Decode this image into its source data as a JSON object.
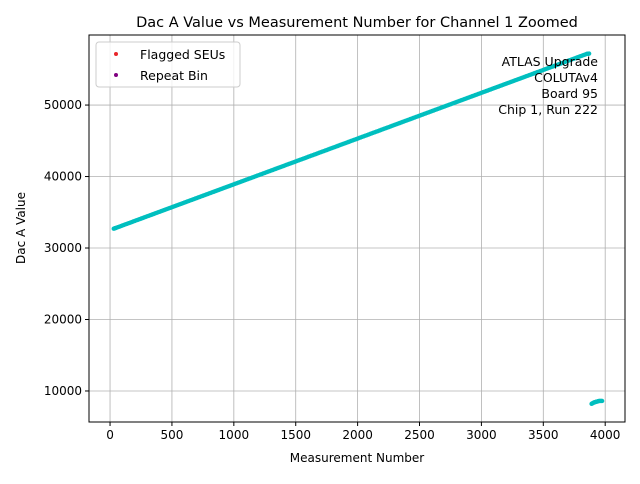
{
  "chart_data": {
    "type": "scatter",
    "title": "Dac A Value vs Measurement Number for Channel 1 Zoomed",
    "xlabel": "Measurement Number",
    "ylabel": "Dac A Value",
    "xlim": [
      -170,
      4160
    ],
    "ylim": [
      5660,
      59800
    ],
    "xticks": [
      0,
      500,
      1000,
      1500,
      2000,
      2500,
      3000,
      3500,
      4000
    ],
    "yticks": [
      10000,
      20000,
      30000,
      40000,
      50000
    ],
    "grid": true,
    "legend": {
      "placement": "top-left",
      "entries": [
        {
          "label": "Flagged SEUs",
          "color": "#e8262a"
        },
        {
          "label": "Repeat Bin",
          "color": "#800080"
        }
      ]
    },
    "annotation": [
      "ATLAS Upgrade",
      "COLUTAv4",
      "Board 95",
      "Chip 1, Run 222"
    ],
    "series": [
      {
        "color": "#00bfbf",
        "points": [
          [
            30,
            32700
          ],
          [
            50,
            32830
          ],
          [
            100,
            33150
          ],
          [
            150,
            33470
          ],
          [
            200,
            33790
          ],
          [
            250,
            34110
          ],
          [
            300,
            34430
          ],
          [
            350,
            34750
          ],
          [
            400,
            35070
          ],
          [
            450,
            35390
          ],
          [
            500,
            35710
          ],
          [
            550,
            36030
          ],
          [
            600,
            36350
          ],
          [
            650,
            36670
          ],
          [
            700,
            36990
          ],
          [
            750,
            37310
          ],
          [
            800,
            37630
          ],
          [
            850,
            37950
          ],
          [
            900,
            38270
          ],
          [
            950,
            38590
          ],
          [
            1000,
            38910
          ],
          [
            1050,
            39230
          ],
          [
            1100,
            39550
          ],
          [
            1150,
            39870
          ],
          [
            1200,
            40190
          ],
          [
            1250,
            40510
          ],
          [
            1300,
            40830
          ],
          [
            1350,
            41150
          ],
          [
            1400,
            41470
          ],
          [
            1450,
            41790
          ],
          [
            1500,
            42110
          ],
          [
            1550,
            42430
          ],
          [
            1600,
            42750
          ],
          [
            1650,
            43070
          ],
          [
            1700,
            43390
          ],
          [
            1750,
            43710
          ],
          [
            1800,
            44030
          ],
          [
            1850,
            44350
          ],
          [
            1900,
            44670
          ],
          [
            1950,
            44990
          ],
          [
            2000,
            45310
          ],
          [
            2050,
            45630
          ],
          [
            2100,
            45950
          ],
          [
            2150,
            46270
          ],
          [
            2200,
            46590
          ],
          [
            2250,
            46910
          ],
          [
            2300,
            47230
          ],
          [
            2350,
            47550
          ],
          [
            2400,
            47870
          ],
          [
            2450,
            48190
          ],
          [
            2500,
            48510
          ],
          [
            2550,
            48830
          ],
          [
            2600,
            49150
          ],
          [
            2650,
            49470
          ],
          [
            2700,
            49790
          ],
          [
            2750,
            50110
          ],
          [
            2800,
            50430
          ],
          [
            2850,
            50750
          ],
          [
            2900,
            51070
          ],
          [
            2950,
            51390
          ],
          [
            3000,
            51710
          ],
          [
            3050,
            52030
          ],
          [
            3100,
            52350
          ],
          [
            3150,
            52670
          ],
          [
            3200,
            52990
          ],
          [
            3250,
            53310
          ],
          [
            3300,
            53630
          ],
          [
            3350,
            53950
          ],
          [
            3400,
            54270
          ],
          [
            3450,
            54590
          ],
          [
            3500,
            54910
          ],
          [
            3550,
            55230
          ],
          [
            3600,
            55550
          ],
          [
            3650,
            55870
          ],
          [
            3700,
            56190
          ],
          [
            3750,
            56510
          ],
          [
            3800,
            56830
          ],
          [
            3850,
            57150
          ],
          [
            3870,
            57200
          ],
          [
            3890,
            8200
          ],
          [
            3910,
            8400
          ],
          [
            3930,
            8500
          ],
          [
            3950,
            8600
          ],
          [
            3975,
            8600
          ]
        ]
      }
    ]
  }
}
